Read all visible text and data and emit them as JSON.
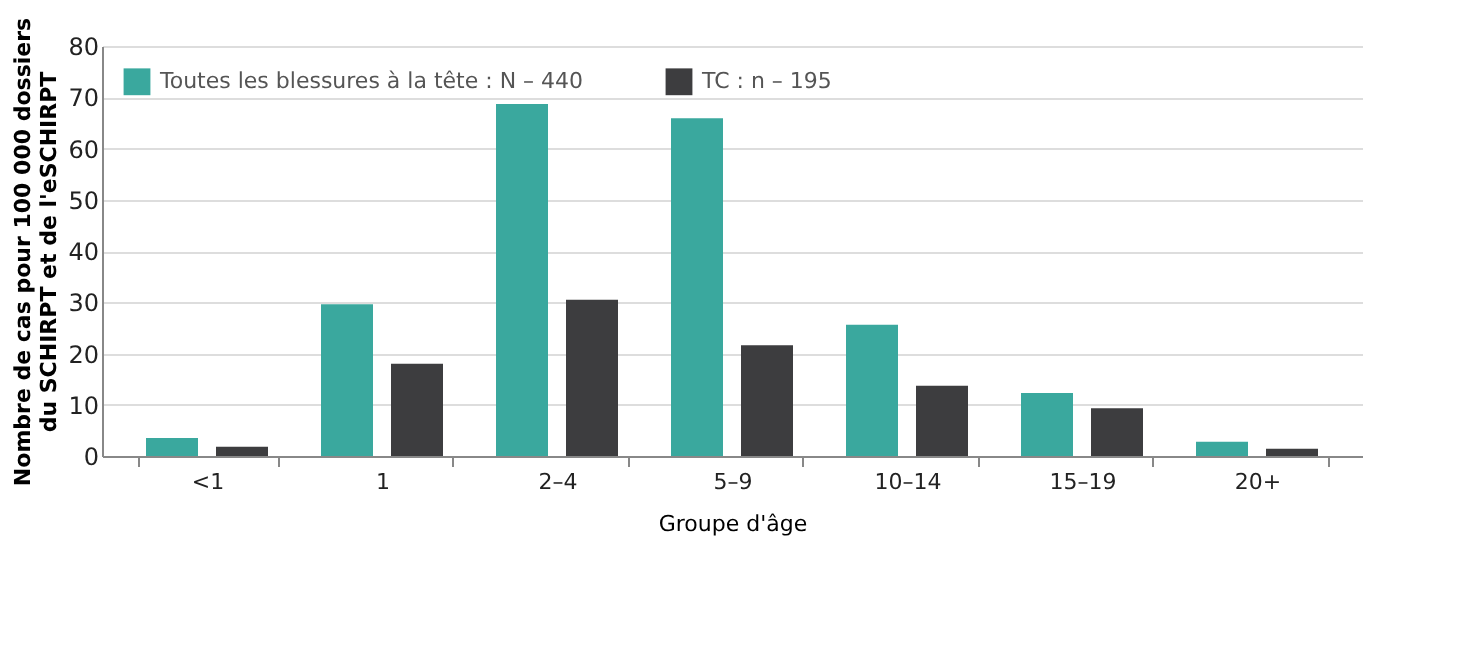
{
  "chart_data": {
    "type": "bar",
    "xlabel": "Groupe d'âge",
    "ylabel": "Nombre de cas pour 100 000 dossiers du SCHIRPT et de l'eSCHIRPT",
    "categories": [
      "<1",
      "1",
      "2–4",
      "5–9",
      "10–14",
      "15–19",
      "20+"
    ],
    "series": [
      {
        "name": "Toutes les blessures à la tête : N – 440",
        "color": "#3aa89e",
        "values": [
          3.5,
          29.6,
          68.7,
          65.9,
          25.6,
          12.3,
          2.8
        ]
      },
      {
        "name": "TC : n – 195",
        "color": "#3d3d3f",
        "values": [
          1.8,
          18,
          30.5,
          21.6,
          13.7,
          9.3,
          1.4
        ]
      }
    ],
    "ylim": [
      0,
      80
    ],
    "yticks": [
      0,
      10,
      20,
      30,
      40,
      50,
      60,
      70,
      80
    ],
    "grid": "y",
    "legend": "top left"
  }
}
